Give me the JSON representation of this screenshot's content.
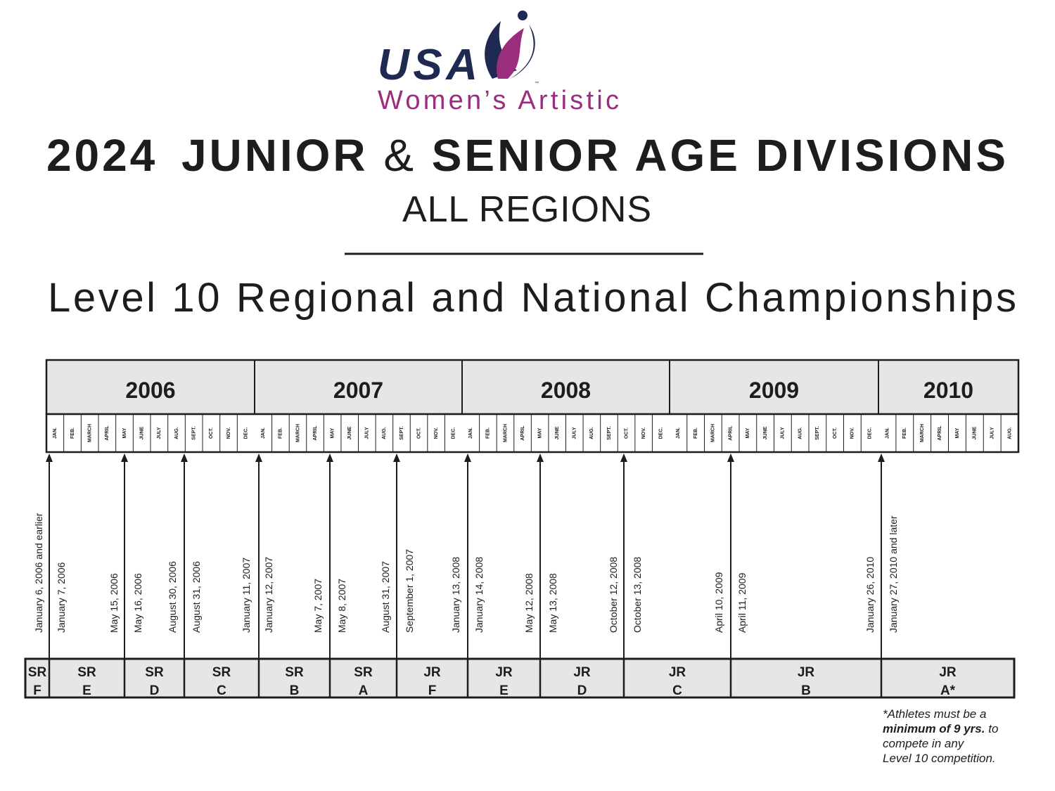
{
  "logo": {
    "mark": "USA",
    "trademark": "™",
    "subtitle": "Women’s Artistic"
  },
  "header": {
    "title": {
      "year": "2024",
      "junior": "JUNIOR",
      "amp": "&",
      "senior": "SENIOR AGE DIVISIONS"
    },
    "subtitle": "ALL REGIONS",
    "heading": "Level 10 Regional and National Championships"
  },
  "timeline": {
    "years": [
      {
        "label": "2006",
        "months": [
          "JAN.",
          "FEB.",
          "MARCH",
          "APRIL",
          "MAY",
          "JUNE",
          "JULY",
          "AUG.",
          "SEPT.",
          "OCT.",
          "NOV.",
          "DEC."
        ]
      },
      {
        "label": "2007",
        "months": [
          "JAN.",
          "FEB.",
          "MARCH",
          "APRIL",
          "MAY",
          "JUNE",
          "JULY",
          "AUG.",
          "SEPT.",
          "OCT.",
          "NOV.",
          "DEC."
        ]
      },
      {
        "label": "2008",
        "months": [
          "JAN.",
          "FEB.",
          "MARCH",
          "APRIL",
          "MAY",
          "JUNE",
          "JULY",
          "AUG.",
          "SEPT.",
          "OCT.",
          "NOV.",
          "DEC."
        ]
      },
      {
        "label": "2009",
        "months": [
          "JAN.",
          "FEB.",
          "MARCH",
          "APRIL",
          "MAY",
          "JUNE",
          "JULY",
          "AUG.",
          "SEPT.",
          "OCT.",
          "NOV.",
          "DEC."
        ]
      },
      {
        "label": "2010",
        "months": [
          "JAN.",
          "FEB.",
          "MARCH",
          "APRIL",
          "MAY",
          "JUNE",
          "JULY",
          "AUG."
        ]
      }
    ],
    "dates": [
      "January 6, 2006 and earlier",
      "January 7, 2006",
      "May 15, 2006",
      "May 16, 2006",
      "August 30, 2006",
      "August 31, 2006",
      "January 11, 2007",
      "January 12, 2007",
      "May 7, 2007",
      "May 8, 2007",
      "August 31, 2007",
      "September 1, 2007",
      "January 13, 2008",
      "January 14, 2008",
      "May 12, 2008",
      "May 13, 2008",
      "October 12, 2008",
      "October 13, 2008",
      "April 10, 2009",
      "April 11, 2009",
      "January 26, 2010",
      "January 27, 2010 and later"
    ],
    "divisions": [
      {
        "group": "SR",
        "letter": "F"
      },
      {
        "group": "SR",
        "letter": "E"
      },
      {
        "group": "SR",
        "letter": "D"
      },
      {
        "group": "SR",
        "letter": "C"
      },
      {
        "group": "SR",
        "letter": "B"
      },
      {
        "group": "SR",
        "letter": "A"
      },
      {
        "group": "JR",
        "letter": "F"
      },
      {
        "group": "JR",
        "letter": "E"
      },
      {
        "group": "JR",
        "letter": "D"
      },
      {
        "group": "JR",
        "letter": "C"
      },
      {
        "group": "JR",
        "letter": "B"
      },
      {
        "group": "JR",
        "letter": "A*"
      }
    ]
  },
  "footnote": {
    "intro": "*Athletes must be a",
    "emphasis": "minimum of 9 yrs.",
    "rest": "to",
    "line3": "compete in any",
    "line4": "Level 10 competition."
  }
}
